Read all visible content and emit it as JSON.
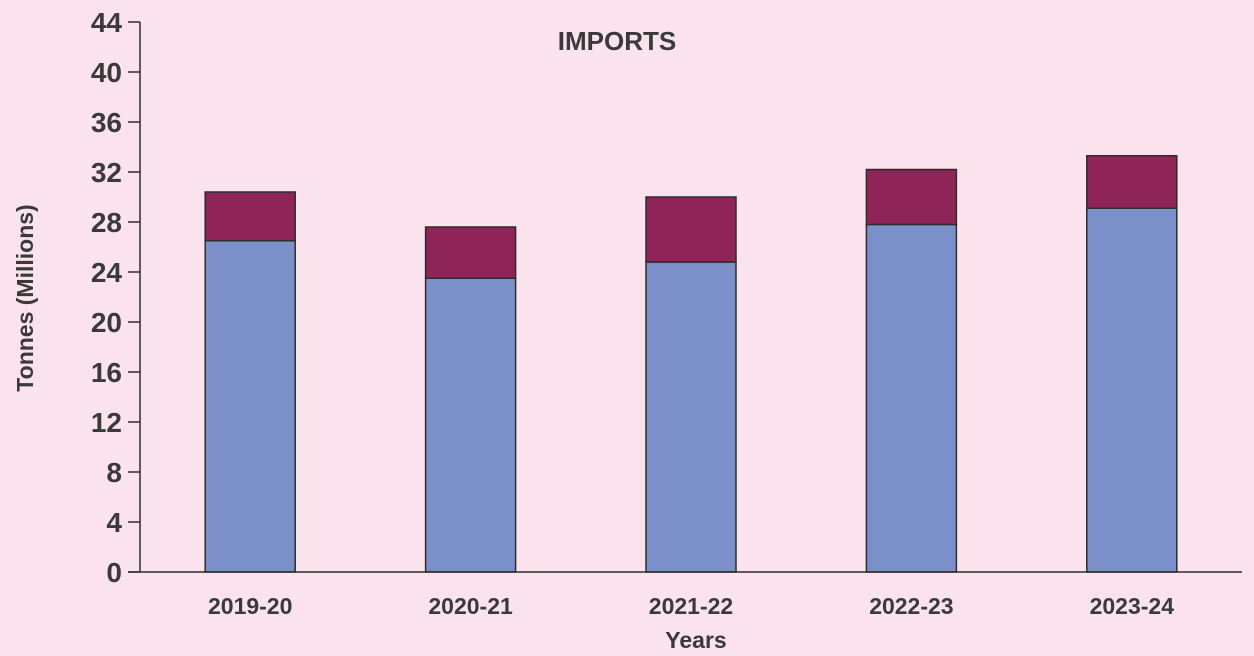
{
  "chart_data": {
    "type": "bar",
    "stacked": true,
    "title": "IMPORTS",
    "xlabel": "Years",
    "ylabel": "Tonnes (Millions)",
    "ylim": [
      0,
      44
    ],
    "yticks": [
      "0",
      "4",
      "8",
      "12",
      "16",
      "20",
      "24",
      "28",
      "32",
      "36",
      "40",
      "44"
    ],
    "categories": [
      "2019-20",
      "2020-21",
      "2021-22",
      "2022-23",
      "2023-24"
    ],
    "grid": false,
    "legend": "none",
    "series": [
      {
        "values": [
          26.5,
          23.5,
          24.8,
          27.8,
          29.1
        ],
        "color": "#7b90c8"
      },
      {
        "values": [
          3.9,
          4.1,
          5.2,
          4.4,
          4.2
        ],
        "color": "#8e2457"
      }
    ]
  }
}
